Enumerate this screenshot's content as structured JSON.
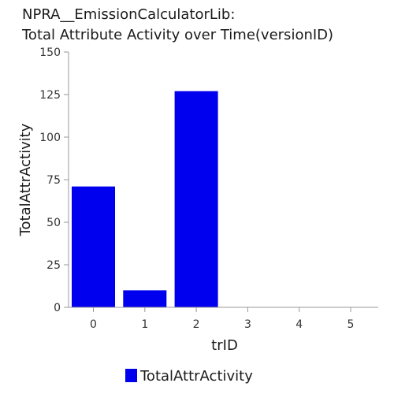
{
  "chart_data": {
    "type": "bar",
    "title_lines": [
      "NPRA__EmissionCalculatorLib:",
      "Total Attribute Activity over Time(versionID)"
    ],
    "xlabel": "trID",
    "ylabel": "TotalAttrActivity",
    "categories": [
      "0",
      "1",
      "2",
      "3",
      "4",
      "5"
    ],
    "series": [
      {
        "name": "TotalAttrActivity",
        "values": [
          71,
          10,
          127,
          0,
          0,
          0
        ],
        "color": "#0000ee"
      }
    ],
    "ylim": [
      0,
      150
    ],
    "yticks": [
      0,
      25,
      50,
      75,
      100,
      125,
      150
    ],
    "grid": false,
    "legend_position": "bottom-center"
  }
}
